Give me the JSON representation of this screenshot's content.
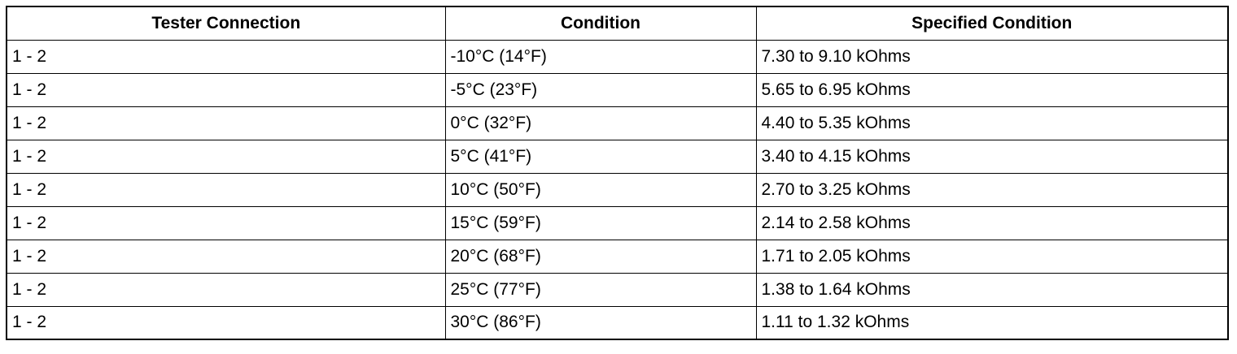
{
  "table": {
    "headers": [
      "Tester Connection",
      "Condition",
      "Specified Condition"
    ],
    "rows": [
      [
        "1 - 2",
        "-10°C (14°F)",
        "7.30 to 9.10 kOhms"
      ],
      [
        "1 - 2",
        "-5°C (23°F)",
        "5.65 to 6.95 kOhms"
      ],
      [
        "1 - 2",
        "0°C (32°F)",
        "4.40 to 5.35 kOhms"
      ],
      [
        "1 - 2",
        "5°C (41°F)",
        "3.40 to 4.15 kOhms"
      ],
      [
        "1 - 2",
        "10°C (50°F)",
        "2.70 to 3.25 kOhms"
      ],
      [
        "1 - 2",
        "15°C (59°F)",
        "2.14 to 2.58 kOhms"
      ],
      [
        "1 - 2",
        "20°C (68°F)",
        "1.71 to 2.05 kOhms"
      ],
      [
        "1 - 2",
        "25°C (77°F)",
        "1.38 to 1.64 kOhms"
      ],
      [
        "1 - 2",
        "30°C (86°F)",
        "1.11 to 1.32 kOhms"
      ]
    ]
  }
}
